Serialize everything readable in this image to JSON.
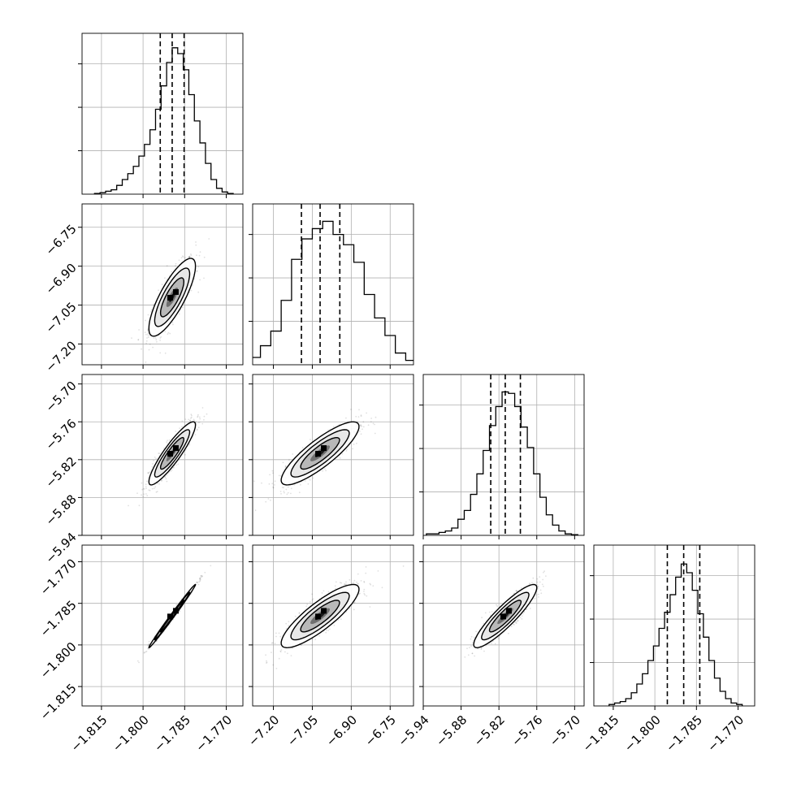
{
  "chart_data": {
    "type": "corner",
    "parameters": 4,
    "axes": [
      {
        "range": [
          -1.822,
          -1.764
        ],
        "ticks": [
          -1.815,
          -1.8,
          -1.785,
          -1.77
        ],
        "tick_labels": [
          "−1.815",
          "−1.800",
          "−1.785",
          "−1.770"
        ]
      },
      {
        "range": [
          -7.28,
          -6.66
        ],
        "ticks": [
          -7.2,
          -7.05,
          -6.9,
          -6.75
        ],
        "tick_labels": [
          "−7.20",
          "−7.05",
          "−6.90",
          "−6.75"
        ]
      },
      {
        "range": [
          -5.94,
          -5.685
        ],
        "ticks": [
          -5.94,
          -5.88,
          -5.82,
          -5.76,
          -5.7
        ],
        "tick_labels": [
          "−5.94",
          "−5.88",
          "−5.82",
          "−5.76",
          "−5.70"
        ]
      },
      {
        "range": [
          -1.822,
          -1.764
        ],
        "ticks": [
          -1.815,
          -1.8,
          -1.785,
          -1.77
        ],
        "tick_labels": [
          "−1.815",
          "−1.800",
          "−1.785",
          "−1.770"
        ]
      }
    ],
    "histograms": [
      {
        "x": [
          -1.8165,
          -1.8145,
          -1.8125,
          -1.8105,
          -1.8085,
          -1.8065,
          -1.8045,
          -1.8025,
          -1.8005,
          -1.7985,
          -1.7965,
          -1.7945,
          -1.7925,
          -1.7905,
          -1.7885,
          -1.7865,
          -1.7845,
          -1.7825,
          -1.7805,
          -1.7785,
          -1.7765,
          -1.7745,
          -1.7725,
          -1.7705,
          -1.7685
        ],
        "values": [
          0.005,
          0.01,
          0.02,
          0.03,
          0.06,
          0.1,
          0.14,
          0.19,
          0.26,
          0.34,
          0.44,
          0.58,
          0.74,
          0.9,
          1.0,
          0.96,
          0.85,
          0.68,
          0.5,
          0.35,
          0.21,
          0.1,
          0.04,
          0.015,
          0.005
        ],
        "quantiles": [
          -1.7938,
          -1.7895,
          -1.7852
        ]
      },
      {
        "x": [
          -7.31,
          -7.27,
          -7.23,
          -7.19,
          -7.15,
          -7.11,
          -7.07,
          -7.03,
          -6.99,
          -6.95,
          -6.91,
          -6.87,
          -6.83,
          -6.79,
          -6.75,
          -6.71,
          -6.67
        ],
        "values": [
          0.02,
          0.05,
          0.13,
          0.23,
          0.44,
          0.72,
          0.86,
          0.93,
          0.98,
          0.89,
          0.82,
          0.7,
          0.48,
          0.32,
          0.2,
          0.08,
          0.03
        ],
        "quantiles": [
          -7.092,
          -7.02,
          -6.944
        ]
      },
      {
        "x": [
          -5.93,
          -5.92,
          -5.91,
          -5.9,
          -5.89,
          -5.88,
          -5.87,
          -5.86,
          -5.85,
          -5.84,
          -5.83,
          -5.82,
          -5.81,
          -5.8,
          -5.79,
          -5.78,
          -5.77,
          -5.76,
          -5.75,
          -5.74,
          -5.73,
          -5.72,
          -5.71,
          -5.7
        ],
        "values": [
          0.01,
          0.01,
          0.02,
          0.03,
          0.05,
          0.11,
          0.17,
          0.28,
          0.42,
          0.58,
          0.75,
          0.88,
          0.98,
          0.97,
          0.88,
          0.74,
          0.6,
          0.42,
          0.26,
          0.14,
          0.07,
          0.03,
          0.01,
          0.005
        ],
        "quantiles": [
          -5.833,
          -5.81,
          -5.786
        ]
      },
      {
        "x": [
          -1.8155,
          -1.8135,
          -1.8115,
          -1.8095,
          -1.8075,
          -1.8055,
          -1.8035,
          -1.8015,
          -1.7995,
          -1.7975,
          -1.7955,
          -1.7935,
          -1.7915,
          -1.7895,
          -1.7875,
          -1.7855,
          -1.7835,
          -1.7815,
          -1.7795,
          -1.7775,
          -1.7755,
          -1.7735,
          -1.7715,
          -1.7695
        ],
        "values": [
          0.01,
          0.02,
          0.03,
          0.05,
          0.09,
          0.15,
          0.22,
          0.31,
          0.41,
          0.53,
          0.64,
          0.76,
          0.88,
          0.97,
          0.91,
          0.79,
          0.63,
          0.47,
          0.31,
          0.19,
          0.1,
          0.05,
          0.02,
          0.01
        ],
        "quantiles": [
          -1.7955,
          -1.7896,
          -1.7838
        ]
      }
    ],
    "means": [
      -1.7895,
      -7.02,
      -5.81,
      -1.7896
    ],
    "sigmas": [
      0.0042,
      0.075,
      0.025,
      0.0057
    ],
    "correlations": {
      "1-0": 0.8,
      "2-0": 0.9,
      "2-1": 0.85,
      "3-0": 0.995,
      "3-1": 0.85,
      "3-2": 0.9
    },
    "grid": true
  }
}
